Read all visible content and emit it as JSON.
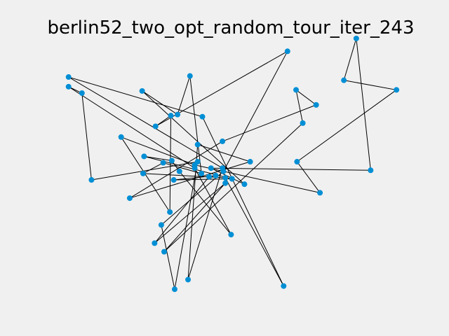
{
  "chart_data": {
    "type": "scatter",
    "title": "berlin52_two_opt_random_tour_iter_243",
    "xlabel": "",
    "ylabel": "",
    "axes_visible": false,
    "grid": false,
    "xlim": [
      -40,
      1780
    ],
    "ylim": [
      -1220,
      -15
    ],
    "point_color": "#008fd5",
    "line_color": "#000000",
    "points": [
      {
        "x": 565,
        "y": -575
      },
      {
        "x": 25,
        "y": -185
      },
      {
        "x": 345,
        "y": -750
      },
      {
        "x": 945,
        "y": -685
      },
      {
        "x": 845,
        "y": -655
      },
      {
        "x": 880,
        "y": -660
      },
      {
        "x": 25,
        "y": -230
      },
      {
        "x": 525,
        "y": -1000
      },
      {
        "x": 580,
        "y": -1175
      },
      {
        "x": 650,
        "y": -1130
      },
      {
        "x": 1605,
        "y": -620
      },
      {
        "x": 1220,
        "y": -580
      },
      {
        "x": 1465,
        "y": -200
      },
      {
        "x": 1530,
        "y": -5
      },
      {
        "x": 845,
        "y": -680
      },
      {
        "x": 725,
        "y": -370
      },
      {
        "x": 145,
        "y": -665
      },
      {
        "x": 415,
        "y": -635
      },
      {
        "x": 510,
        "y": -875
      },
      {
        "x": 560,
        "y": -365
      },
      {
        "x": 300,
        "y": -465
      },
      {
        "x": 520,
        "y": -585
      },
      {
        "x": 480,
        "y": -415
      },
      {
        "x": 835,
        "y": -625
      },
      {
        "x": 975,
        "y": -580
      },
      {
        "x": 1215,
        "y": -245
      },
      {
        "x": 1320,
        "y": -315
      },
      {
        "x": 1250,
        "y": -400
      },
      {
        "x": 660,
        "y": -180
      },
      {
        "x": 410,
        "y": -250
      },
      {
        "x": 420,
        "y": -555
      },
      {
        "x": 575,
        "y": -665
      },
      {
        "x": 1150,
        "y": -1160
      },
      {
        "x": 700,
        "y": -580
      },
      {
        "x": 685,
        "y": -595
      },
      {
        "x": 685,
        "y": -610
      },
      {
        "x": 770,
        "y": -610
      },
      {
        "x": 795,
        "y": -645
      },
      {
        "x": 720,
        "y": -635
      },
      {
        "x": 760,
        "y": -650
      },
      {
        "x": 475,
        "y": -960
      },
      {
        "x": 95,
        "y": -260
      },
      {
        "x": 875,
        "y": -920
      },
      {
        "x": 700,
        "y": -500
      },
      {
        "x": 555,
        "y": -815
      },
      {
        "x": 830,
        "y": -485
      },
      {
        "x": 1170,
        "y": -65
      },
      {
        "x": 830,
        "y": -610
      },
      {
        "x": 605,
        "y": -625
      },
      {
        "x": 595,
        "y": -360
      },
      {
        "x": 1340,
        "y": -725
      },
      {
        "x": 1740,
        "y": -245
      }
    ],
    "tour": [
      0,
      48,
      42,
      35,
      6,
      41,
      16,
      33,
      8,
      18,
      23,
      46,
      22,
      19,
      44,
      20,
      34,
      50,
      11,
      51,
      12,
      13,
      10,
      36,
      3,
      29,
      49,
      28,
      38,
      21,
      17,
      4,
      32,
      15,
      1,
      47,
      9,
      43,
      24,
      2,
      45,
      26,
      25,
      27,
      7,
      14,
      40,
      39,
      37,
      31,
      5,
      30,
      0
    ]
  }
}
